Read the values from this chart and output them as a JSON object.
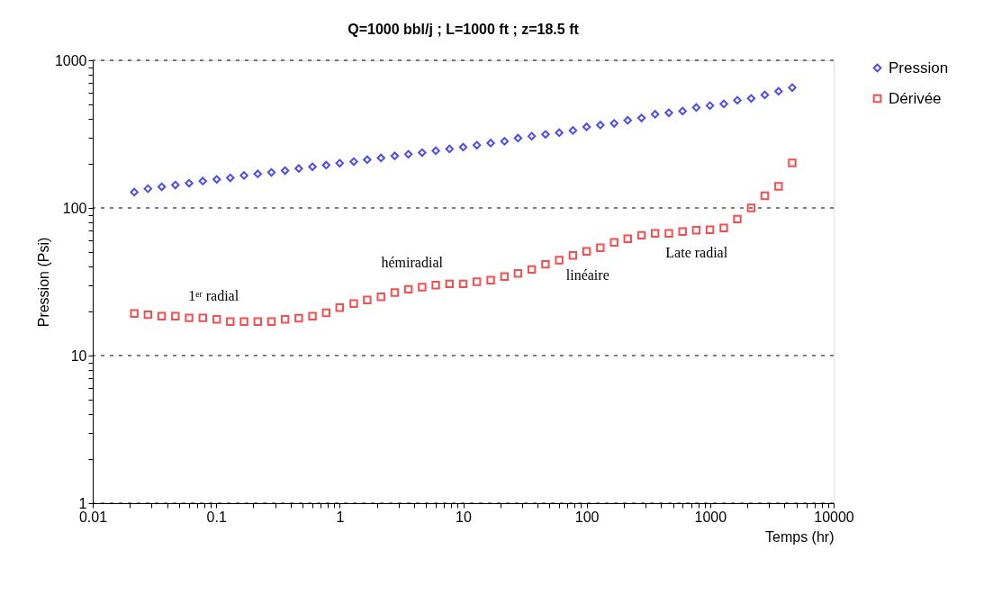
{
  "chart_data": {
    "type": "scatter",
    "title": "Q=1000 bbl/j ; L=1000 ft ; z=18.5 ft",
    "xlabel": "Temps (hr)",
    "ylabel": "Pression (Psi)",
    "x": [
      0.0217,
      0.028,
      0.0362,
      0.0467,
      0.0603,
      0.0779,
      0.101,
      0.13,
      0.168,
      0.217,
      0.28,
      0.361,
      0.466,
      0.602,
      0.777,
      1.0,
      1.3,
      1.67,
      2.16,
      2.79,
      3.6,
      4.65,
      6.0,
      7.75,
      10.0,
      12.9,
      16.7,
      21.6,
      27.8,
      35.9,
      46.4,
      59.9,
      77.4,
      99.9,
      129,
      167,
      215,
      278,
      358,
      463,
      598,
      772,
      996,
      1290,
      1660,
      2150,
      2770,
      3580,
      4620
    ],
    "series": [
      {
        "name": "Pression",
        "color": "#0000ff",
        "marker": "diamond",
        "values": [
          128,
          135,
          139,
          143,
          147,
          152,
          156,
          160,
          166,
          170,
          174,
          179,
          185,
          190,
          195,
          201,
          206,
          212,
          218,
          225,
          231,
          237,
          244,
          251,
          258,
          266,
          275,
          283,
          297,
          306,
          315,
          323,
          335,
          354,
          364,
          374,
          392,
          407,
          431,
          441,
          453,
          479,
          493,
          507,
          536,
          552,
          583,
          617,
          653
        ]
      },
      {
        "name": "Dérivée",
        "color": "#ff0000",
        "marker": "square",
        "values": [
          19.3,
          18.9,
          18.5,
          18.5,
          18.0,
          18.0,
          17.6,
          17.0,
          17.0,
          17.0,
          17.0,
          17.6,
          17.9,
          18.5,
          19.5,
          21.1,
          22.5,
          23.8,
          25.0,
          26.7,
          28.1,
          29.1,
          30.0,
          30.6,
          30.6,
          31.6,
          32.4,
          34.3,
          36.0,
          38.3,
          41.5,
          44.3,
          47.7,
          50.8,
          53.7,
          58.4,
          61.8,
          65.3,
          67.2,
          67.2,
          69.1,
          70.7,
          71.1,
          73.1,
          84.1,
          100,
          121,
          140,
          202
        ]
      }
    ],
    "log": "xy",
    "xlim": [
      0.01,
      10000
    ],
    "ylim": [
      1,
      1000
    ],
    "xticks": [
      0.01,
      {
        "value": 0.02,
        "label": null
      },
      {
        "value": 0.03,
        "label": null
      },
      {
        "value": 0.04,
        "label": null
      },
      {
        "value": 0.05,
        "label": null
      },
      {
        "value": 0.06,
        "label": null
      },
      {
        "value": 0.07,
        "label": null
      },
      {
        "value": 0.08,
        "label": null
      },
      {
        "value": 0.09,
        "label": null
      },
      0.1,
      {
        "value": 0.2,
        "label": null
      },
      {
        "value": 0.3,
        "label": null
      },
      {
        "value": 0.4,
        "label": null
      },
      {
        "value": 0.5,
        "label": null
      },
      {
        "value": 0.6,
        "label": null
      },
      {
        "value": 0.7,
        "label": null
      },
      {
        "value": 0.8,
        "label": null
      },
      {
        "value": 0.9,
        "label": null
      },
      1,
      {
        "value": 2,
        "label": null
      },
      {
        "value": 3,
        "label": null
      },
      {
        "value": 4,
        "label": null
      },
      {
        "value": 5,
        "label": null
      },
      {
        "value": 6,
        "label": null
      },
      {
        "value": 7,
        "label": null
      },
      {
        "value": 8,
        "label": null
      },
      {
        "value": 9,
        "label": null
      },
      10,
      {
        "value": 20,
        "label": null
      },
      {
        "value": 30,
        "label": null
      },
      {
        "value": 40,
        "label": null
      },
      {
        "value": 50,
        "label": null
      },
      {
        "value": 60,
        "label": null
      },
      {
        "value": 70,
        "label": null
      },
      {
        "value": 80,
        "label": null
      },
      {
        "value": 90,
        "label": null
      },
      100,
      {
        "value": 200,
        "label": null
      },
      {
        "value": 300,
        "label": null
      },
      {
        "value": 400,
        "label": null
      },
      {
        "value": 500,
        "label": null
      },
      {
        "value": 600,
        "label": null
      },
      {
        "value": 700,
        "label": null
      },
      {
        "value": 800,
        "label": null
      },
      {
        "value": 900,
        "label": null
      },
      1000,
      {
        "value": 2000,
        "label": null
      },
      {
        "value": 3000,
        "label": null
      },
      {
        "value": 4000,
        "label": null
      },
      {
        "value": 5000,
        "label": null
      },
      {
        "value": 6000,
        "label": null
      },
      {
        "value": 7000,
        "label": null
      },
      {
        "value": 8000,
        "label": null
      },
      {
        "value": 9000,
        "label": null
      },
      10000
    ],
    "yticks": [
      1,
      {
        "value": 2,
        "label": null
      },
      {
        "value": 3,
        "label": null
      },
      {
        "value": 4,
        "label": null
      },
      {
        "value": 5,
        "label": null
      },
      {
        "value": 6,
        "label": null
      },
      {
        "value": 7,
        "label": null
      },
      {
        "value": 8,
        "label": null
      },
      {
        "value": 9,
        "label": null
      },
      10,
      {
        "value": 20,
        "label": null
      },
      {
        "value": 30,
        "label": null
      },
      {
        "value": 40,
        "label": null
      },
      {
        "value": 50,
        "label": null
      },
      {
        "value": 60,
        "label": null
      },
      {
        "value": 70,
        "label": null
      },
      {
        "value": 80,
        "label": null
      },
      {
        "value": 90,
        "label": null
      },
      100,
      {
        "value": 200,
        "label": null
      },
      {
        "value": 300,
        "label": null
      },
      {
        "value": 400,
        "label": null
      },
      {
        "value": 500,
        "label": null
      },
      {
        "value": 600,
        "label": null
      },
      {
        "value": 700,
        "label": null
      },
      {
        "value": 800,
        "label": null
      },
      {
        "value": 900,
        "label": null
      },
      1000
    ],
    "grid": "y",
    "legend": "right",
    "annotations": [
      "1ᵉʳ radial",
      "hémiradial",
      "linéaire",
      "Late radial"
    ]
  }
}
